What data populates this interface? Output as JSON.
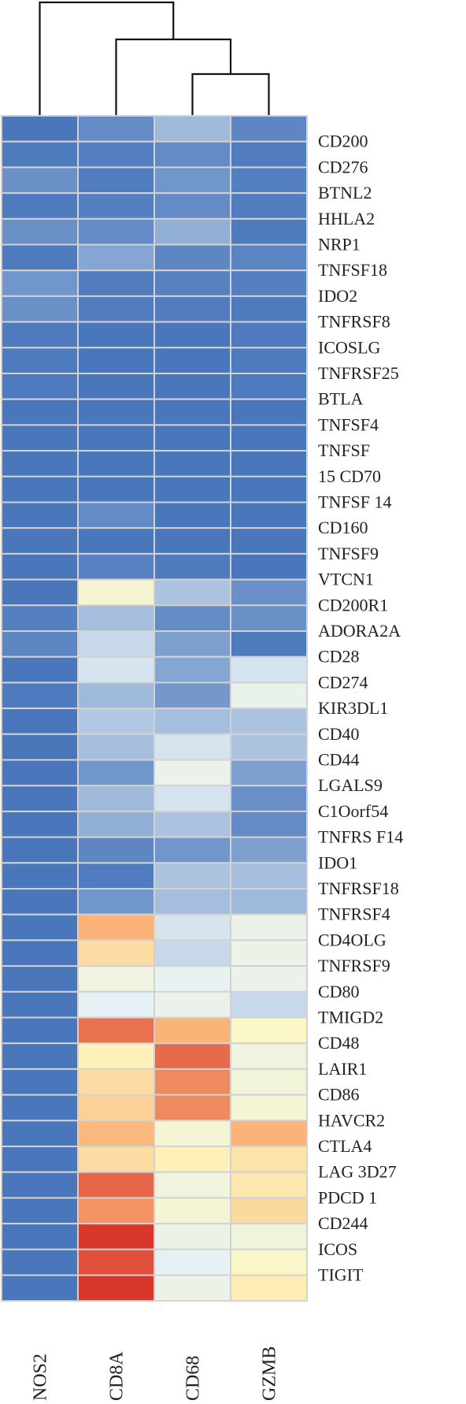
{
  "chart_data": {
    "type": "heatmap",
    "title": "",
    "columns": [
      "NOS2",
      "CD8A",
      "CD68",
      "GZMB"
    ],
    "row_labels": [
      "CD200",
      "CD276",
      "BTNL2",
      "HHLA2",
      "NRP1",
      "TNFSF18",
      "IDO2",
      "TNFRSF8",
      "ICOSLG",
      "TNFRSF25",
      "BTLA",
      "TNFSF4",
      "TNFSF",
      "15 CD70",
      "TNFSF 14",
      "CD160",
      "TNFSF9",
      "VTCN1",
      "CD200R1",
      "ADORA2A",
      "CD28",
      "CD274",
      "KIR3DL1",
      "CD40",
      "CD44",
      "LGALS9",
      "C1Oorf54",
      "TNFRS F14",
      "IDO1",
      "TNFRSF18",
      "TNFRSF4",
      "CD4OLG",
      "TNFRSF9",
      "CD80",
      "TMIGD2",
      "CD48",
      "LAIR1",
      "CD86",
      "HAVCR2",
      "CTLA4",
      "LAG 3D27",
      "PDCD 1",
      "CD244",
      "ICOS",
      "TIGIT",
      ""
    ],
    "value_range": [
      -1,
      1
    ],
    "colorscale": [
      "#4472ba",
      "#e6f1f5",
      "#fdf7bf",
      "#fbb377",
      "#d73228"
    ],
    "values": [
      [
        -0.98,
        -0.9,
        -0.72,
        -0.92
      ],
      [
        -0.97,
        -0.95,
        -0.9,
        -0.96
      ],
      [
        -0.88,
        -0.96,
        -0.86,
        -0.95
      ],
      [
        -0.97,
        -0.95,
        -0.9,
        -0.96
      ],
      [
        -0.88,
        -0.9,
        -0.76,
        -0.97
      ],
      [
        -0.97,
        -0.8,
        -0.92,
        -0.93
      ],
      [
        -0.86,
        -0.96,
        -0.94,
        -0.95
      ],
      [
        -0.88,
        -0.96,
        -0.96,
        -0.97
      ],
      [
        -0.97,
        -0.98,
        -0.98,
        -0.97
      ],
      [
        -0.97,
        -0.98,
        -0.98,
        -0.97
      ],
      [
        -0.97,
        -0.98,
        -0.98,
        -0.97
      ],
      [
        -0.98,
        -0.98,
        -0.98,
        -0.98
      ],
      [
        -0.98,
        -0.98,
        -0.98,
        -0.98
      ],
      [
        -0.98,
        -0.98,
        -0.98,
        -0.98
      ],
      [
        -0.98,
        -0.98,
        -0.98,
        -0.98
      ],
      [
        -0.98,
        -0.9,
        -0.98,
        -0.98
      ],
      [
        -0.98,
        -0.98,
        -0.98,
        -0.98
      ],
      [
        -0.98,
        -0.94,
        -0.97,
        -0.98
      ],
      [
        -0.98,
        -0.18,
        -0.68,
        -0.88
      ],
      [
        -0.95,
        -0.7,
        -0.9,
        -0.88
      ],
      [
        -0.92,
        -0.6,
        -0.82,
        -0.97
      ],
      [
        -0.98,
        -0.55,
        -0.8,
        -0.55
      ],
      [
        -0.97,
        -0.72,
        -0.85,
        -0.42
      ],
      [
        -0.98,
        -0.66,
        -0.7,
        -0.68
      ],
      [
        -0.98,
        -0.7,
        -0.55,
        -0.68
      ],
      [
        -0.98,
        -0.86,
        -0.4,
        -0.82
      ],
      [
        -0.98,
        -0.72,
        -0.55,
        -0.88
      ],
      [
        -0.98,
        -0.76,
        -0.68,
        -0.9
      ],
      [
        -0.98,
        -0.92,
        -0.86,
        -0.82
      ],
      [
        -0.98,
        -0.96,
        -0.68,
        -0.7
      ],
      [
        -0.98,
        -0.86,
        -0.7,
        -0.72
      ],
      [
        -0.98,
        0.5,
        -0.55,
        -0.38
      ],
      [
        -0.98,
        0.2,
        -0.6,
        -0.38
      ],
      [
        -0.98,
        -0.3,
        -0.45,
        -0.4
      ],
      [
        -0.98,
        -0.5,
        -0.4,
        -0.6
      ],
      [
        -0.98,
        0.75,
        0.5,
        -0.06
      ],
      [
        -0.98,
        0.04,
        0.78,
        -0.3
      ],
      [
        -0.98,
        0.2,
        0.66,
        -0.25
      ],
      [
        -0.98,
        0.28,
        0.66,
        -0.2
      ],
      [
        -0.98,
        0.46,
        -0.2,
        0.5
      ],
      [
        -0.98,
        0.2,
        0.05,
        0.15
      ],
      [
        -0.98,
        0.8,
        -0.28,
        0.12
      ],
      [
        -0.98,
        0.62,
        -0.2,
        0.22
      ],
      [
        -0.98,
        0.98,
        -0.38,
        -0.28
      ],
      [
        -0.98,
        0.88,
        -0.48,
        -0.08
      ],
      [
        -0.98,
        0.98,
        -0.38,
        0.08
      ]
    ],
    "dendrogram": "((NOS2),(CD8A,(CD68,GZMB)))",
    "legend": "none",
    "grid": false
  }
}
